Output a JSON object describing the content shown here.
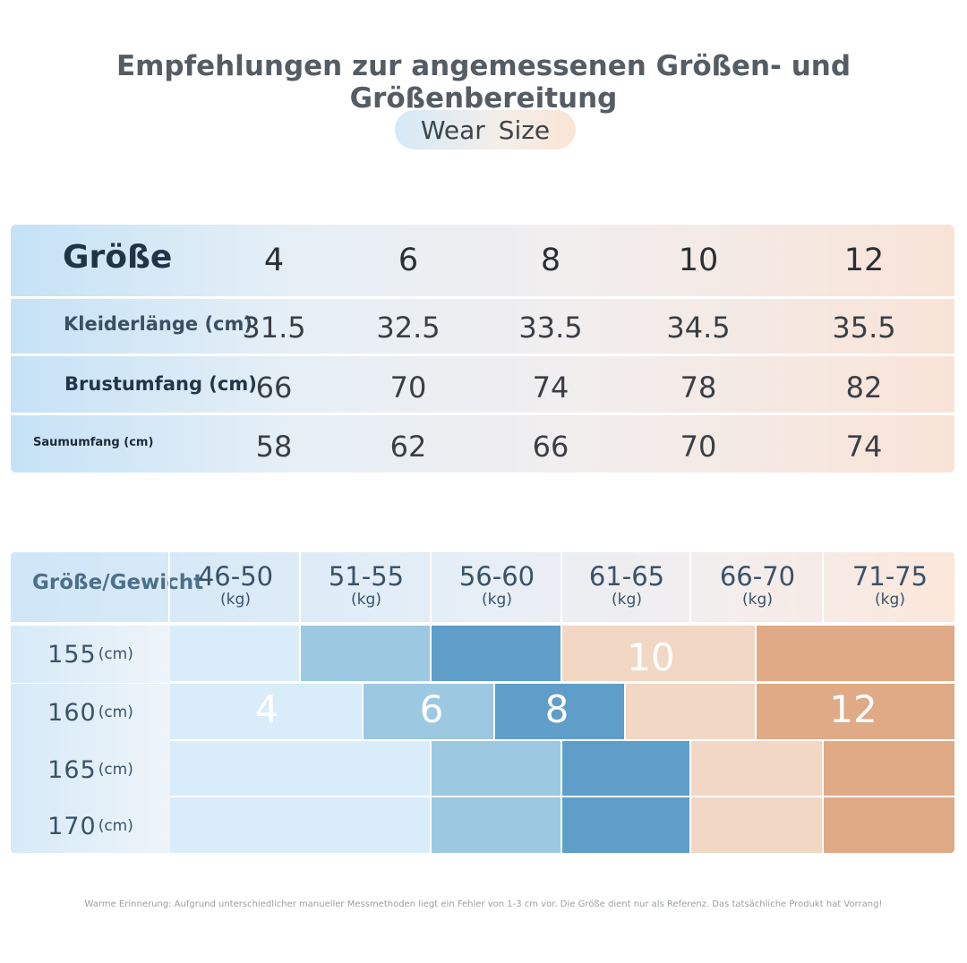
{
  "title": "Empfehlungen zur angemessenen Größen- und Größenbereitung",
  "badge": "Wear Size",
  "size_table": {
    "header_label": "Größe",
    "sizes": [
      "4",
      "6",
      "8",
      "10",
      "12"
    ],
    "rows": [
      {
        "label": "Kleiderlänge (cm)",
        "values": [
          "31.5",
          "32.5",
          "33.5",
          "34.5",
          "35.5"
        ]
      },
      {
        "label": "Brustumfang (cm)",
        "values": [
          "66",
          "70",
          "74",
          "78",
          "82"
        ]
      },
      {
        "label": "Saumumfang (cm)",
        "values": [
          "58",
          "62",
          "66",
          "70",
          "74"
        ]
      }
    ]
  },
  "weight_grid": {
    "header_label": "Größe/Gewicht",
    "weights": [
      {
        "range": "46-50",
        "unit": "(kg)"
      },
      {
        "range": "51-55",
        "unit": "(kg)"
      },
      {
        "range": "56-60",
        "unit": "(kg)"
      },
      {
        "range": "61-65",
        "unit": "(kg)"
      },
      {
        "range": "66-70",
        "unit": "(kg)"
      },
      {
        "range": "71-75",
        "unit": "(kg)"
      }
    ],
    "heights": [
      {
        "value": "155",
        "unit": "(cm)"
      },
      {
        "value": "160",
        "unit": "(cm)"
      },
      {
        "value": "165",
        "unit": "(cm)"
      },
      {
        "value": "170",
        "unit": "(cm)"
      }
    ],
    "size_labels": {
      "s4": "4",
      "s6": "6",
      "s8": "8",
      "s10": "10",
      "s12": "12"
    },
    "colors": {
      "size_4": "#d9ecf9",
      "size_6": "#9dc8e2",
      "size_8": "#5f9ec9",
      "size_10": "#f2d7c5",
      "size_12": "#e0aa86"
    }
  },
  "note": "Warme Erinnerung: Aufgrund unterschiedlicher manueller Messmethoden liegt ein Fehler von 1-3 cm vor. Die Größe dient nur als Referenz. Das tatsächliche Produkt hat Vorrang!"
}
